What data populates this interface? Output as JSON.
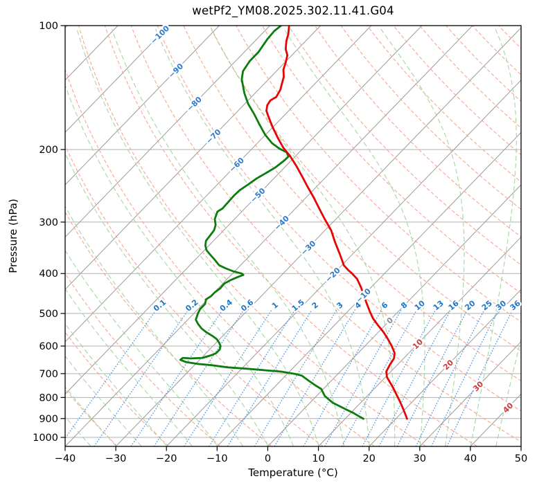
{
  "chart_data": {
    "type": "skewt_log_p",
    "title": "wetPf2_YM08.2025.302.11.41.G04",
    "xlabel": "Temperature (°C)",
    "ylabel": "Pressure (hPa)",
    "x_ticks": [
      -40,
      -30,
      -20,
      -10,
      0,
      10,
      20,
      30,
      40,
      50
    ],
    "y_ticks": [
      100,
      200,
      300,
      400,
      500,
      600,
      700,
      800,
      900,
      1000
    ],
    "xlim": [
      -40,
      50
    ],
    "pressure_lim": [
      1050,
      100
    ],
    "skew": "45deg",
    "isotherm_range": [
      -120,
      50
    ],
    "isotherm_step": 10,
    "isotherm_label_values": [
      -100,
      -90,
      -80,
      -70,
      -60,
      -50,
      -40,
      -30,
      -20,
      -10,
      0,
      10,
      20,
      30,
      40
    ],
    "dry_adiabats_theta_K": {
      "start": 230,
      "end": 470,
      "step": 10
    },
    "moist_adiabats_start_C": {
      "start": -40,
      "end": 50,
      "step": 5
    },
    "mixing_ratio_g_kg": [
      0.1,
      0.2,
      0.4,
      0.6,
      1,
      1.5,
      2,
      3,
      4,
      6,
      8,
      10,
      13,
      16,
      20,
      25,
      30,
      36
    ],
    "temperature_profile": [
      [
        100,
        -76.2
      ],
      [
        105,
        -74.7
      ],
      [
        109,
        -73.8
      ],
      [
        114,
        -72.4
      ],
      [
        118,
        -70.9
      ],
      [
        123,
        -69.8
      ],
      [
        128,
        -68.9
      ],
      [
        133,
        -67.5
      ],
      [
        138,
        -66.6
      ],
      [
        143,
        -65.7
      ],
      [
        149,
        -65.1
      ],
      [
        152,
        -65.6
      ],
      [
        156,
        -65.3
      ],
      [
        161,
        -64.4
      ],
      [
        167,
        -62.7
      ],
      [
        177,
        -59.9
      ],
      [
        188,
        -56.8
      ],
      [
        198,
        -54.0
      ],
      [
        207,
        -51.2
      ],
      [
        219,
        -48.0
      ],
      [
        232,
        -44.9
      ],
      [
        246,
        -41.8
      ],
      [
        261,
        -38.6
      ],
      [
        277,
        -35.5
      ],
      [
        295,
        -32.2
      ],
      [
        314,
        -28.8
      ],
      [
        336,
        -25.7
      ],
      [
        359,
        -22.5
      ],
      [
        382,
        -19.6
      ],
      [
        392,
        -17.9
      ],
      [
        400,
        -16.4
      ],
      [
        412,
        -14.4
      ],
      [
        432,
        -12.0
      ],
      [
        458,
        -9.3
      ],
      [
        494,
        -5.7
      ],
      [
        514,
        -3.7
      ],
      [
        534,
        -1.4
      ],
      [
        555,
        1.0
      ],
      [
        577,
        3.2
      ],
      [
        600,
        5.3
      ],
      [
        624,
        7.2
      ],
      [
        643,
        8.1
      ],
      [
        666,
        8.5
      ],
      [
        692,
        9.1
      ],
      [
        714,
        10.3
      ],
      [
        734,
        11.8
      ],
      [
        757,
        13.5
      ],
      [
        787,
        15.5
      ],
      [
        818,
        17.5
      ],
      [
        850,
        19.4
      ],
      [
        884,
        21.3
      ],
      [
        901,
        22.2
      ]
    ],
    "dewpoint_profile": [
      [
        100,
        -77.8
      ],
      [
        103,
        -78.1
      ],
      [
        108,
        -77.9
      ],
      [
        116,
        -77.2
      ],
      [
        122,
        -77.2
      ],
      [
        129,
        -76.6
      ],
      [
        135,
        -75.3
      ],
      [
        146,
        -72.1
      ],
      [
        155,
        -69.3
      ],
      [
        164,
        -66.2
      ],
      [
        174,
        -63.1
      ],
      [
        184,
        -60.1
      ],
      [
        193,
        -57.1
      ],
      [
        199,
        -54.6
      ],
      [
        203,
        -52.5
      ],
      [
        208,
        -51.3
      ],
      [
        213,
        -51.4
      ],
      [
        221,
        -51.8
      ],
      [
        228,
        -52.6
      ],
      [
        235,
        -53.4
      ],
      [
        243,
        -53.9
      ],
      [
        251,
        -54.5
      ],
      [
        259,
        -54.6
      ],
      [
        268,
        -54.5
      ],
      [
        278,
        -54.4
      ],
      [
        283,
        -54.8
      ],
      [
        295,
        -53.9
      ],
      [
        305,
        -52.6
      ],
      [
        314,
        -51.9
      ],
      [
        323,
        -51.7
      ],
      [
        333,
        -51.5
      ],
      [
        342,
        -50.7
      ],
      [
        351,
        -49.6
      ],
      [
        360,
        -48.0
      ],
      [
        370,
        -46.2
      ],
      [
        382,
        -44.2
      ],
      [
        389,
        -42.2
      ],
      [
        395,
        -40.3
      ],
      [
        400,
        -38.2
      ],
      [
        403,
        -37.6
      ],
      [
        408,
        -38.3
      ],
      [
        415,
        -39.1
      ],
      [
        423,
        -39.7
      ],
      [
        435,
        -39.6
      ],
      [
        445,
        -39.9
      ],
      [
        454,
        -39.9
      ],
      [
        462,
        -40.3
      ],
      [
        474,
        -39.6
      ],
      [
        488,
        -39.6
      ],
      [
        500,
        -39.2
      ],
      [
        518,
        -38.4
      ],
      [
        530,
        -37.2
      ],
      [
        544,
        -35.6
      ],
      [
        555,
        -34.0
      ],
      [
        566,
        -32.2
      ],
      [
        577,
        -30.6
      ],
      [
        589,
        -29.4
      ],
      [
        600,
        -28.5
      ],
      [
        612,
        -28.0
      ],
      [
        624,
        -28.0
      ],
      [
        631,
        -28.5
      ],
      [
        641,
        -29.8
      ],
      [
        643,
        -32.0
      ],
      [
        641,
        -33.7
      ],
      [
        648,
        -33.8
      ],
      [
        656,
        -32.3
      ],
      [
        663,
        -29.6
      ],
      [
        668,
        -26.6
      ],
      [
        676,
        -23.0
      ],
      [
        681,
        -19.1
      ],
      [
        687,
        -15.1
      ],
      [
        692,
        -11.7
      ],
      [
        701,
        -8.5
      ],
      [
        708,
        -6.8
      ],
      [
        728,
        -4.5
      ],
      [
        748,
        -2.2
      ],
      [
        763,
        -0.4
      ],
      [
        793,
        1.6
      ],
      [
        808,
        3.0
      ],
      [
        824,
        4.5
      ],
      [
        840,
        6.5
      ],
      [
        857,
        8.6
      ],
      [
        873,
        10.6
      ],
      [
        890,
        12.4
      ],
      [
        901,
        13.6
      ]
    ],
    "colors": {
      "temperature": "#e60505",
      "dewpoint": "#0c7c0c",
      "isotherm": "#9a9a9a",
      "grid": "#b0b0b0",
      "dry_adiabat": "#fba48e",
      "moist_adiabat": "#a5d6a0",
      "mixing_ratio": "#4f97dd",
      "label_negative": "#2d7bce",
      "label_zero": "#8c8c8c",
      "label_positive": "#cf3838",
      "mixing_label": "#1f76c8",
      "axis": "#000000"
    }
  }
}
